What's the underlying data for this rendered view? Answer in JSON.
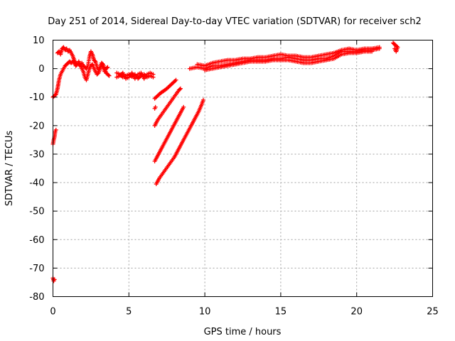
{
  "chart_data": {
    "type": "scatter",
    "title": "Day 251 of 2014, Sidereal Day-to-day VTEC variation (SDTVAR) for receiver sch2",
    "xlabel": "GPS time / hours",
    "ylabel": "SDTVAR / TECUs",
    "xlim": [
      0,
      25
    ],
    "ylim": [
      -80,
      10
    ],
    "xticks": [
      0,
      5,
      10,
      15,
      20,
      25
    ],
    "xtick_labels": [
      "0",
      "5",
      "10",
      "15",
      "20",
      "25"
    ],
    "yticks": [
      10,
      0,
      -10,
      -20,
      -30,
      -40,
      -50,
      -60,
      -70,
      -80
    ],
    "ytick_labels": [
      "10",
      "0",
      "-10",
      "-20",
      "-30",
      "-40",
      "-50",
      "-60",
      "-70",
      "-80"
    ],
    "grid": true,
    "marker": "plus",
    "color": "#ff0000",
    "series": [
      {
        "name": "sch2 SDTVAR",
        "segments": [
          [
            [
              0.0,
              -73.5
            ],
            [
              0.05,
              -74.5
            ],
            [
              0.1,
              -74.0
            ]
          ],
          [
            [
              0.0,
              -26.5
            ],
            [
              0.05,
              -25.0
            ],
            [
              0.1,
              -24.0
            ],
            [
              0.15,
              -22.0
            ],
            [
              0.2,
              -21.5
            ]
          ],
          [
            [
              0.0,
              -10.0
            ],
            [
              0.1,
              -9.5
            ],
            [
              0.2,
              -9.0
            ],
            [
              0.25,
              -8.0
            ],
            [
              0.3,
              -7.0
            ],
            [
              0.35,
              -5.5
            ],
            [
              0.4,
              -4.0
            ],
            [
              0.45,
              -3.0
            ],
            [
              0.5,
              -2.0
            ],
            [
              0.6,
              -1.0
            ],
            [
              0.7,
              0.0
            ],
            [
              0.8,
              1.0
            ],
            [
              0.9,
              1.5
            ],
            [
              1.0,
              2.0
            ],
            [
              1.1,
              2.5
            ],
            [
              1.2,
              2.0
            ],
            [
              1.3,
              2.5
            ],
            [
              1.4,
              2.0
            ],
            [
              1.5,
              1.0
            ],
            [
              1.6,
              1.5
            ],
            [
              1.7,
              2.5
            ],
            [
              1.8,
              1.5
            ],
            [
              1.9,
              0.0
            ],
            [
              2.0,
              -1.0
            ],
            [
              2.1,
              -3.0
            ],
            [
              2.2,
              -4.0
            ],
            [
              2.3,
              -2.0
            ],
            [
              2.4,
              0.0
            ],
            [
              2.5,
              1.0
            ],
            [
              2.6,
              1.5
            ],
            [
              2.7,
              0.0
            ],
            [
              2.8,
              -1.0
            ],
            [
              2.9,
              -2.0
            ],
            [
              3.0,
              -1.5
            ],
            [
              3.1,
              0.0
            ],
            [
              3.2,
              1.0
            ],
            [
              3.3,
              0.5
            ],
            [
              3.4,
              -1.0
            ],
            [
              3.5,
              0.0
            ],
            [
              3.6,
              0.5
            ]
          ],
          [
            [
              0.3,
              5.5
            ],
            [
              0.4,
              6.0
            ],
            [
              0.5,
              5.0
            ],
            [
              0.6,
              7.0
            ],
            [
              0.7,
              7.5
            ],
            [
              0.8,
              6.5
            ],
            [
              0.9,
              7.0
            ],
            [
              1.0,
              6.0
            ],
            [
              1.1,
              6.5
            ],
            [
              1.2,
              5.5
            ],
            [
              1.3,
              4.5
            ],
            [
              1.4,
              3.0
            ],
            [
              1.5,
              2.0
            ],
            [
              1.6,
              1.5
            ],
            [
              1.7,
              1.5
            ],
            [
              1.8,
              1.0
            ],
            [
              1.9,
              2.0
            ],
            [
              2.0,
              1.0
            ],
            [
              2.1,
              0.5
            ],
            [
              2.2,
              0.0
            ],
            [
              2.3,
              1.0
            ],
            [
              2.4,
              4.0
            ],
            [
              2.5,
              6.0
            ],
            [
              2.6,
              5.0
            ],
            [
              2.7,
              3.0
            ],
            [
              2.8,
              2.5
            ],
            [
              2.9,
              0.5
            ],
            [
              3.0,
              -0.5
            ],
            [
              3.1,
              0.5
            ],
            [
              3.2,
              2.0
            ],
            [
              3.3,
              1.5
            ],
            [
              3.4,
              0.0
            ],
            [
              3.5,
              -1.5
            ],
            [
              3.6,
              -2.0
            ],
            [
              3.7,
              -2.5
            ]
          ],
          [
            [
              4.2,
              -1.5
            ],
            [
              4.4,
              -2.0
            ],
            [
              4.6,
              -3.0
            ],
            [
              4.8,
              -2.5
            ],
            [
              5.0,
              -2.0
            ],
            [
              5.2,
              -2.8
            ],
            [
              5.4,
              -2.0
            ],
            [
              5.6,
              -3.5
            ],
            [
              5.8,
              -2.5
            ],
            [
              6.0,
              -2.0
            ],
            [
              6.2,
              -3.0
            ],
            [
              6.4,
              -2.5
            ],
            [
              6.6,
              -3.0
            ]
          ],
          [
            [
              4.2,
              -3.0
            ],
            [
              4.4,
              -2.5
            ],
            [
              4.6,
              -1.5
            ],
            [
              4.8,
              -3.5
            ],
            [
              5.0,
              -3.0
            ],
            [
              5.2,
              -1.5
            ],
            [
              5.4,
              -3.5
            ],
            [
              5.6,
              -2.0
            ],
            [
              5.8,
              -1.5
            ],
            [
              6.0,
              -3.5
            ],
            [
              6.2,
              -2.0
            ],
            [
              6.4,
              -1.5
            ],
            [
              6.6,
              -2.0
            ]
          ],
          [
            [
              6.7,
              -10.5
            ],
            [
              6.9,
              -9.5
            ],
            [
              7.1,
              -8.5
            ],
            [
              7.3,
              -7.8
            ],
            [
              7.5,
              -7.0
            ],
            [
              7.7,
              -6.0
            ],
            [
              7.9,
              -5.0
            ],
            [
              8.1,
              -4.0
            ]
          ],
          [
            [
              6.7,
              -14.0
            ],
            [
              6.75,
              -13.5
            ]
          ],
          [
            [
              6.7,
              -20.0
            ],
            [
              6.9,
              -18.0
            ],
            [
              7.1,
              -16.5
            ],
            [
              7.3,
              -15.0
            ],
            [
              7.5,
              -13.5
            ],
            [
              7.7,
              -12.0
            ],
            [
              7.9,
              -10.5
            ],
            [
              8.1,
              -9.0
            ],
            [
              8.3,
              -7.5
            ],
            [
              8.4,
              -7.0
            ]
          ],
          [
            [
              6.7,
              -32.5
            ],
            [
              6.9,
              -30.5
            ],
            [
              7.1,
              -28.5
            ],
            [
              7.3,
              -26.5
            ],
            [
              7.5,
              -24.5
            ],
            [
              7.7,
              -22.5
            ],
            [
              7.9,
              -20.5
            ],
            [
              8.1,
              -18.5
            ],
            [
              8.3,
              -16.5
            ],
            [
              8.5,
              -14.5
            ],
            [
              8.6,
              -13.5
            ]
          ],
          [
            [
              6.8,
              -40.5
            ],
            [
              7.0,
              -38.5
            ],
            [
              7.2,
              -37.0
            ],
            [
              7.4,
              -35.5
            ],
            [
              7.6,
              -34.0
            ],
            [
              7.8,
              -32.5
            ],
            [
              8.0,
              -31.0
            ],
            [
              8.2,
              -29.0
            ],
            [
              8.4,
              -27.0
            ],
            [
              8.6,
              -25.0
            ],
            [
              8.8,
              -23.0
            ],
            [
              9.0,
              -21.0
            ],
            [
              9.2,
              -19.0
            ],
            [
              9.4,
              -17.0
            ],
            [
              9.6,
              -15.0
            ],
            [
              9.8,
              -12.5
            ],
            [
              9.9,
              -11.0
            ]
          ],
          [
            [
              9.0,
              0.0
            ],
            [
              9.5,
              0.5
            ],
            [
              10.0,
              0.0
            ],
            [
              10.5,
              1.0
            ],
            [
              11.0,
              1.0
            ],
            [
              11.5,
              1.5
            ],
            [
              12.0,
              2.0
            ],
            [
              12.5,
              2.5
            ],
            [
              13.0,
              3.0
            ],
            [
              13.5,
              3.0
            ],
            [
              14.0,
              3.0
            ],
            [
              14.5,
              3.5
            ],
            [
              15.0,
              3.5
            ],
            [
              15.5,
              4.0
            ],
            [
              16.0,
              3.5
            ],
            [
              16.5,
              3.0
            ],
            [
              17.0,
              3.0
            ],
            [
              17.5,
              3.5
            ],
            [
              18.0,
              3.5
            ],
            [
              18.5,
              4.5
            ],
            [
              19.0,
              6.0
            ],
            [
              19.5,
              6.0
            ],
            [
              20.0,
              6.0
            ],
            [
              20.5,
              6.5
            ],
            [
              21.0,
              6.5
            ],
            [
              21.5,
              7.0
            ]
          ],
          [
            [
              9.5,
              1.5
            ],
            [
              10.0,
              1.0
            ],
            [
              10.5,
              2.0
            ],
            [
              11.0,
              2.5
            ],
            [
              11.5,
              3.0
            ],
            [
              12.0,
              3.0
            ],
            [
              12.5,
              3.5
            ],
            [
              13.0,
              3.5
            ],
            [
              13.5,
              4.0
            ],
            [
              14.0,
              4.0
            ],
            [
              14.5,
              4.5
            ],
            [
              15.0,
              5.0
            ],
            [
              15.5,
              4.5
            ],
            [
              16.0,
              4.5
            ],
            [
              16.5,
              4.0
            ],
            [
              17.0,
              4.0
            ],
            [
              17.5,
              4.5
            ],
            [
              18.0,
              5.0
            ],
            [
              18.5,
              5.5
            ],
            [
              19.0,
              6.5
            ],
            [
              19.5,
              7.0
            ],
            [
              20.0,
              6.5
            ],
            [
              20.5,
              7.0
            ],
            [
              21.0,
              7.0
            ],
            [
              21.5,
              7.5
            ]
          ],
          [
            [
              10.0,
              -0.5
            ],
            [
              10.5,
              0.0
            ],
            [
              11.0,
              0.5
            ],
            [
              11.5,
              1.0
            ],
            [
              12.0,
              1.5
            ],
            [
              12.5,
              2.0
            ],
            [
              13.0,
              2.5
            ],
            [
              13.5,
              2.5
            ],
            [
              14.0,
              2.5
            ],
            [
              14.5,
              3.0
            ],
            [
              15.0,
              3.0
            ],
            [
              15.5,
              3.0
            ],
            [
              16.0,
              2.5
            ],
            [
              16.5,
              2.0
            ],
            [
              17.0,
              2.0
            ],
            [
              17.5,
              2.5
            ],
            [
              18.0,
              3.0
            ],
            [
              18.5,
              3.5
            ],
            [
              19.0,
              5.0
            ],
            [
              19.5,
              5.5
            ],
            [
              20.0,
              5.5
            ],
            [
              20.5,
              6.0
            ],
            [
              21.0,
              6.0
            ]
          ],
          [
            [
              22.4,
              9.0
            ],
            [
              22.5,
              8.5
            ],
            [
              22.6,
              8.0
            ],
            [
              22.7,
              7.5
            ],
            [
              22.6,
              6.0
            ],
            [
              22.5,
              7.0
            ]
          ]
        ]
      }
    ]
  }
}
